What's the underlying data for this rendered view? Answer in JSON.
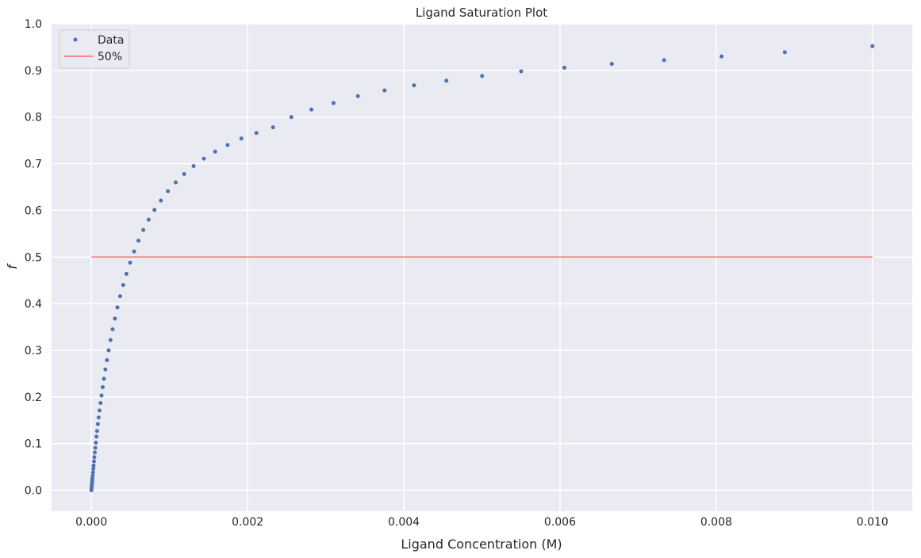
{
  "chart_data": {
    "type": "scatter",
    "title": "Ligand Saturation Plot",
    "xlabel": "Ligand Concentration (M)",
    "ylabel": "f",
    "xlim": [
      -0.00051,
      0.01051
    ],
    "ylim": [
      -0.045,
      1.0
    ],
    "grid": true,
    "legend_position": "top-left",
    "colors": {
      "background": "#eaeaf2",
      "grid": "#ffffff",
      "data": "#4c72b0",
      "reference_line": "#ff6b6b"
    },
    "x_ticks": [
      0,
      0.002,
      0.004,
      0.006,
      0.008,
      0.01
    ],
    "x_tick_labels": [
      "0.000",
      "0.002",
      "0.004",
      "0.006",
      "0.008",
      "0.010"
    ],
    "y_ticks": [
      0,
      0.1,
      0.2,
      0.3,
      0.4,
      0.5,
      0.6,
      0.7,
      0.8,
      0.9,
      1.0
    ],
    "y_tick_labels": [
      "0.0",
      "0.1",
      "0.2",
      "0.3",
      "0.4",
      "0.5",
      "0.6",
      "0.7",
      "0.8",
      "0.9",
      "1.0"
    ],
    "series": [
      {
        "name": "Data",
        "kind": "scatter",
        "color": "#4c72b0",
        "x": [
          0.0,
          2e-06,
          4e-06,
          6e-06,
          8e-06,
          1e-05,
          1.3e-05,
          1.6e-05,
          2e-05,
          2.4e-05,
          2.8e-05,
          3.3e-05,
          3.8e-05,
          4.4e-05,
          5e-05,
          5.7e-05,
          6.5e-05,
          7.3e-05,
          8.3e-05,
          9.3e-05,
          0.000104,
          0.000117,
          0.00013,
          0.000145,
          0.000161,
          0.000179,
          0.000199,
          0.000221,
          0.000245,
          0.000272,
          0.000301,
          0.000333,
          0.000368,
          0.000407,
          0.000449,
          0.000496,
          0.000547,
          0.000603,
          0.000665,
          0.000733,
          0.000808,
          0.00089,
          0.00098,
          0.001079,
          0.001188,
          0.001308,
          0.00144,
          0.001585,
          0.001744,
          0.00192,
          0.002113,
          0.002326,
          0.00256,
          0.002817,
          0.0031,
          0.003412,
          0.003754,
          0.004131,
          0.004545,
          0.005002,
          0.005503,
          0.006056,
          0.006663,
          0.007332,
          0.008068,
          0.008878,
          0.01
        ],
        "y": [
          0.0,
          0.004,
          0.008,
          0.012,
          0.016,
          0.02,
          0.025,
          0.031,
          0.038,
          0.046,
          0.053,
          0.062,
          0.071,
          0.081,
          0.091,
          0.102,
          0.115,
          0.127,
          0.142,
          0.156,
          0.171,
          0.187,
          0.203,
          0.221,
          0.239,
          0.259,
          0.279,
          0.3,
          0.322,
          0.345,
          0.368,
          0.392,
          0.416,
          0.44,
          0.464,
          0.488,
          0.512,
          0.535,
          0.558,
          0.58,
          0.601,
          0.621,
          0.641,
          0.66,
          0.678,
          0.695,
          0.711,
          0.726,
          0.74,
          0.754,
          0.766,
          0.778,
          0.8,
          0.816,
          0.83,
          0.845,
          0.857,
          0.868,
          0.878,
          0.888,
          0.898,
          0.906,
          0.914,
          0.922,
          0.93,
          0.939,
          0.952
        ]
      },
      {
        "name": "50%",
        "kind": "line",
        "color": "#ff6b6b",
        "x": [
          0.0,
          0.01
        ],
        "y": [
          0.5,
          0.5
        ]
      }
    ]
  }
}
